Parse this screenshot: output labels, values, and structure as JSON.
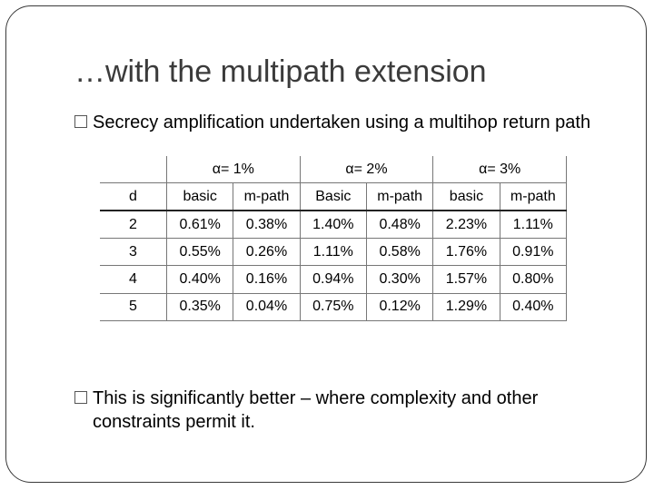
{
  "slide": {
    "title": "…with the multipath extension",
    "bullets": [
      "Secrecy amplification undertaken using a multihop return path",
      "This is significantly better – where complexity and other constraints permit it."
    ]
  },
  "table": {
    "groups": [
      "α= 1%",
      "α= 2%",
      "α= 3%"
    ],
    "columns": [
      "d",
      "basic",
      "m-path",
      "Basic",
      "m-path",
      "basic",
      "m-path"
    ],
    "rows": [
      [
        "2",
        "0.61%",
        "0.38%",
        "1.40%",
        "0.48%",
        "2.23%",
        "1.11%"
      ],
      [
        "3",
        "0.55%",
        "0.26%",
        "1.11%",
        "0.58%",
        "1.76%",
        "0.91%"
      ],
      [
        "4",
        "0.40%",
        "0.16%",
        "0.94%",
        "0.30%",
        "1.57%",
        "0.80%"
      ],
      [
        "5",
        "0.35%",
        "0.04%",
        "0.75%",
        "0.12%",
        "1.29%",
        "0.40%"
      ]
    ]
  }
}
